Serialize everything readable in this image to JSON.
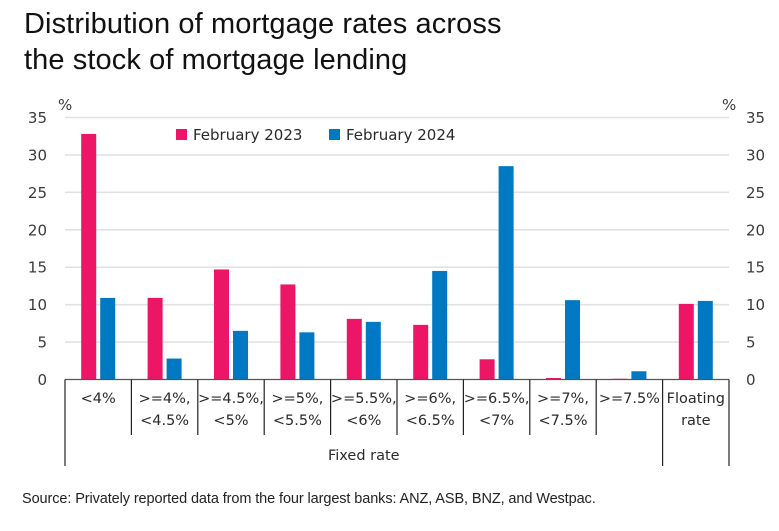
{
  "title": {
    "line1": "Distribution of mortgage rates across",
    "line2": "the stock of mortgage lending"
  },
  "source": "Source: Privately reported data from the four largest banks: ANZ, ASB, BNZ, and Westpac.",
  "chart_data": {
    "type": "bar",
    "title": "Distribution of mortgage rates across the stock of mortgage lending",
    "xlabel": "",
    "ylabel": "%",
    "ylabel_right": "%",
    "ylim": [
      0,
      35
    ],
    "yticks": [
      0,
      5,
      10,
      15,
      20,
      25,
      30,
      35
    ],
    "grid": true,
    "legend_position": "top-center",
    "categories": [
      [
        "<4%"
      ],
      [
        ">=4%,",
        "<4.5%"
      ],
      [
        ">=4.5%,",
        "<5%"
      ],
      [
        ">=5%,",
        "<5.5%"
      ],
      [
        ">=5.5%,",
        "<6%"
      ],
      [
        ">=6%,",
        "<6.5%"
      ],
      [
        ">=6.5%,",
        "<7%"
      ],
      [
        ">=7%,",
        "<7.5%"
      ],
      [
        ">=7.5%"
      ],
      [
        "Floating",
        "rate"
      ]
    ],
    "category_groups": [
      {
        "label": "Fixed rate",
        "from": 0,
        "to": 8
      },
      {
        "label": "",
        "from": 9,
        "to": 9
      }
    ],
    "series": [
      {
        "name": "February 2023",
        "color": "#ED1566",
        "values": [
          32.8,
          10.9,
          14.7,
          12.7,
          8.1,
          7.3,
          2.7,
          0.2,
          0.1,
          10.1
        ]
      },
      {
        "name": "February 2024",
        "color": "#0079C2",
        "values": [
          10.9,
          2.8,
          6.5,
          6.3,
          7.7,
          14.5,
          28.5,
          10.6,
          1.1,
          10.5
        ]
      }
    ]
  }
}
